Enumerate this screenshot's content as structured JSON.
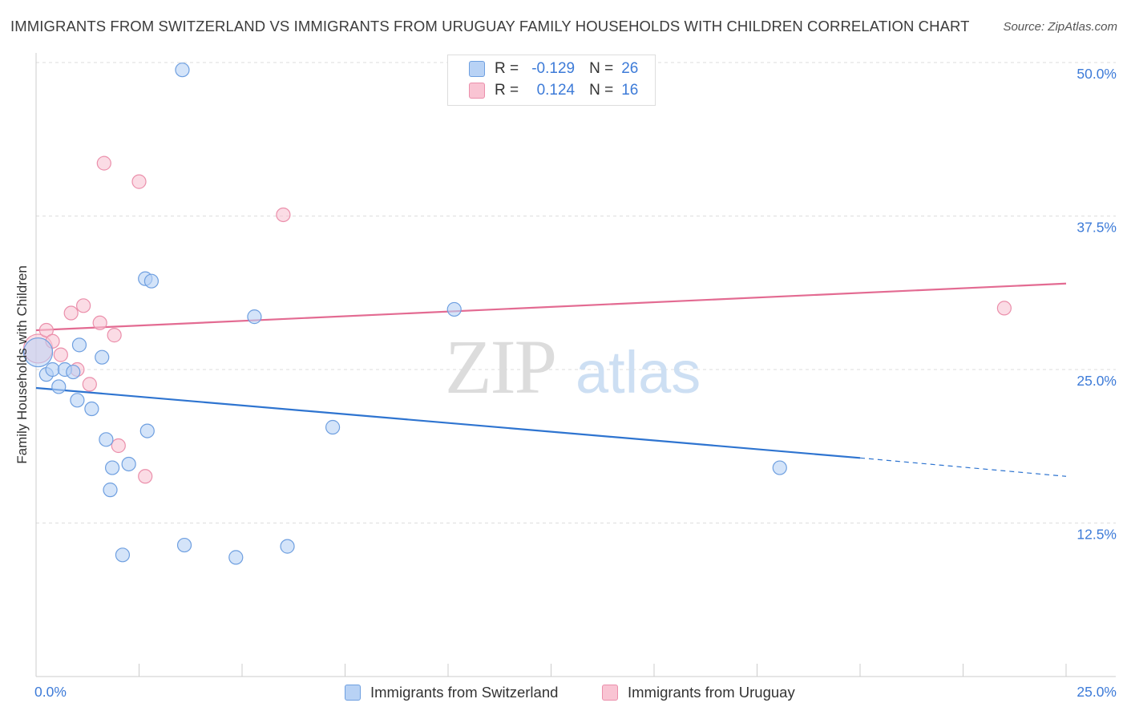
{
  "title": "IMMIGRANTS FROM SWITZERLAND VS IMMIGRANTS FROM URUGUAY FAMILY HOUSEHOLDS WITH CHILDREN CORRELATION CHART",
  "source": "Source: ZipAtlas.com",
  "watermark": {
    "zip": "ZIP",
    "atlas": "atlas"
  },
  "legend": {
    "switzerland": {
      "r_label": "R =",
      "r_value": "-0.129",
      "n_label": "N =",
      "n_value": "26"
    },
    "uruguay": {
      "r_label": "R =",
      "r_value": "0.124",
      "n_label": "N =",
      "n_value": "16"
    }
  },
  "bottom_legend": {
    "switzerland": "Immigrants from Switzerland",
    "uruguay": "Immigrants from Uruguay"
  },
  "colors": {
    "switzerland_fill": "#b8d2f5",
    "switzerland_stroke": "#6e9fe0",
    "switzerland_line": "#2e74d0",
    "uruguay_fill": "#f9c4d3",
    "uruguay_stroke": "#eb8fab",
    "uruguay_line": "#e36b92",
    "axis_text": "#3d7bd8",
    "grid": "#dddddd"
  },
  "chart_data": {
    "type": "scatter",
    "title": "IMMIGRANTS FROM SWITZERLAND VS IMMIGRANTS FROM URUGUAY FAMILY HOUSEHOLDS WITH CHILDREN CORRELATION CHART",
    "xlabel": "",
    "ylabel": "Family Households with Children",
    "xlim": [
      0,
      25
    ],
    "ylim": [
      0,
      50
    ],
    "x_tick_labels": [
      {
        "value": 0,
        "label": "0.0%"
      },
      {
        "value": 25,
        "label": "25.0%"
      }
    ],
    "y_ticks": [
      {
        "value": 12.5,
        "label": "12.5%"
      },
      {
        "value": 25,
        "label": "25.0%"
      },
      {
        "value": 37.5,
        "label": "37.5%"
      },
      {
        "value": 50,
        "label": "50.0%"
      }
    ],
    "grid": true,
    "series": [
      {
        "name": "Immigrants from Switzerland",
        "r": -0.129,
        "n": 26,
        "points": [
          {
            "x": 0.05,
            "y": 26.4,
            "big": true
          },
          {
            "x": 0.25,
            "y": 24.6
          },
          {
            "x": 0.4,
            "y": 25.0
          },
          {
            "x": 0.55,
            "y": 23.6
          },
          {
            "x": 0.7,
            "y": 25.0
          },
          {
            "x": 0.9,
            "y": 24.8
          },
          {
            "x": 1.05,
            "y": 27.0
          },
          {
            "x": 1.0,
            "y": 22.5
          },
          {
            "x": 1.35,
            "y": 21.8
          },
          {
            "x": 1.6,
            "y": 26.0
          },
          {
            "x": 1.7,
            "y": 19.3
          },
          {
            "x": 1.85,
            "y": 17.0
          },
          {
            "x": 1.8,
            "y": 15.2
          },
          {
            "x": 2.25,
            "y": 17.3
          },
          {
            "x": 2.1,
            "y": 9.9
          },
          {
            "x": 2.65,
            "y": 32.4
          },
          {
            "x": 2.7,
            "y": 20.0
          },
          {
            "x": 2.8,
            "y": 32.2
          },
          {
            "x": 3.55,
            "y": 49.4
          },
          {
            "x": 3.6,
            "y": 10.7
          },
          {
            "x": 4.85,
            "y": 9.7
          },
          {
            "x": 5.3,
            "y": 29.3
          },
          {
            "x": 6.1,
            "y": 10.6
          },
          {
            "x": 7.2,
            "y": 20.3
          },
          {
            "x": 10.15,
            "y": 29.9
          },
          {
            "x": 18.05,
            "y": 17.0
          }
        ],
        "trend": {
          "x0": 0,
          "y0": 23.5,
          "x1": 20,
          "y1": 17.8,
          "x1_dashed": 25,
          "y1_dashed": 16.3
        }
      },
      {
        "name": "Immigrants from Uruguay",
        "r": 0.124,
        "n": 16,
        "points": [
          {
            "x": 0.05,
            "y": 26.7,
            "big": true
          },
          {
            "x": 0.25,
            "y": 28.2
          },
          {
            "x": 0.4,
            "y": 27.3
          },
          {
            "x": 0.6,
            "y": 26.2
          },
          {
            "x": 0.85,
            "y": 29.6
          },
          {
            "x": 1.0,
            "y": 25.0
          },
          {
            "x": 1.15,
            "y": 30.2
          },
          {
            "x": 1.3,
            "y": 23.8
          },
          {
            "x": 1.55,
            "y": 28.8
          },
          {
            "x": 1.65,
            "y": 41.8
          },
          {
            "x": 1.9,
            "y": 27.8
          },
          {
            "x": 2.0,
            "y": 18.8
          },
          {
            "x": 2.5,
            "y": 40.3
          },
          {
            "x": 2.65,
            "y": 16.3
          },
          {
            "x": 6.0,
            "y": 37.6
          },
          {
            "x": 23.5,
            "y": 30.0
          }
        ],
        "trend": {
          "x0": 0,
          "y0": 28.2,
          "x1": 25,
          "y1": 32.0
        }
      }
    ]
  }
}
